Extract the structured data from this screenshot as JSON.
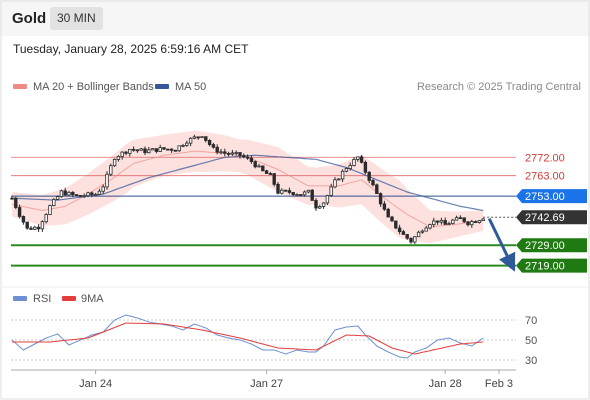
{
  "app": {
    "title": "Gold",
    "timeframe": "30 MIN"
  },
  "datetime": "Tuesday, January 28, 2025 6:59:16 AM CET",
  "credit": "Research © 2025 Trading Central",
  "colors": {
    "bollinger_band": "#f9c8c4",
    "ma20": "#f08a84",
    "ma50": "#36579a",
    "candle": "#2b2b2b",
    "candle_up": "#ffffff",
    "resistance_line": "#e06868",
    "pivot_line": "#2f4f8f",
    "support_line": "#2a8a1f",
    "pivot_label": "#1a73e8",
    "support_label": "#1f7a12",
    "current_label": "#333333",
    "arrow": "#2e5a9a",
    "rsi_line": "#6e8fd0",
    "rsi_ma_line": "#e33d3d"
  },
  "chart_data": [
    {
      "type": "candlestick",
      "title": "Gold",
      "legend": [
        {
          "name": "MA 20 + Bollinger Bands",
          "color": "#f08a84"
        },
        {
          "name": "MA 50",
          "color": "#36579a"
        }
      ],
      "x_ticks": [
        {
          "label": "Jan 24",
          "bar": 22
        },
        {
          "label": "Jan 27",
          "bar": 67
        },
        {
          "label": "Jan 28",
          "bar": 114
        },
        {
          "label": "Feb 3",
          "bar": 133
        }
      ],
      "ylim": [
        2712,
        2800
      ],
      "levels": [
        {
          "label": "2772.00",
          "value": 2772.0,
          "kind": "resistance"
        },
        {
          "label": "2763.00",
          "value": 2763.0,
          "kind": "resistance"
        },
        {
          "label": "2753.00",
          "value": 2753.0,
          "kind": "pivot"
        },
        {
          "label": "2742.69",
          "value": 2742.69,
          "kind": "current"
        },
        {
          "label": "2729.00",
          "value": 2729.0,
          "kind": "support"
        },
        {
          "label": "2719.00",
          "value": 2719.0,
          "kind": "support"
        }
      ],
      "close_anchors": [
        [
          0,
          2752
        ],
        [
          2,
          2744
        ],
        [
          4,
          2737
        ],
        [
          7,
          2738
        ],
        [
          10,
          2748
        ],
        [
          13,
          2755
        ],
        [
          17,
          2753
        ],
        [
          22,
          2754
        ],
        [
          24,
          2758
        ],
        [
          27,
          2772
        ],
        [
          31,
          2776
        ],
        [
          35,
          2775
        ],
        [
          39,
          2776
        ],
        [
          43,
          2776
        ],
        [
          46,
          2780
        ],
        [
          50,
          2783
        ],
        [
          53,
          2776
        ],
        [
          56,
          2774
        ],
        [
          60,
          2773
        ],
        [
          63,
          2770
        ],
        [
          66,
          2765
        ],
        [
          68,
          2763
        ],
        [
          70,
          2755
        ],
        [
          73,
          2755
        ],
        [
          76,
          2754
        ],
        [
          78,
          2755
        ],
        [
          80,
          2748
        ],
        [
          82,
          2750
        ],
        [
          85,
          2760
        ],
        [
          88,
          2767
        ],
        [
          91,
          2772
        ],
        [
          93,
          2765
        ],
        [
          95,
          2758
        ],
        [
          97,
          2750
        ],
        [
          99,
          2742
        ],
        [
          101,
          2738
        ],
        [
          103,
          2734
        ],
        [
          105,
          2731
        ],
        [
          106,
          2733
        ],
        [
          108,
          2737
        ],
        [
          110,
          2740
        ],
        [
          112,
          2741
        ],
        [
          114,
          2739
        ],
        [
          116,
          2741
        ],
        [
          118,
          2742
        ],
        [
          120,
          2740
        ],
        [
          122,
          2741
        ],
        [
          124,
          2742.69
        ]
      ],
      "ma50_anchors": [
        [
          0,
          2752
        ],
        [
          12,
          2751
        ],
        [
          24,
          2754
        ],
        [
          36,
          2762
        ],
        [
          48,
          2768
        ],
        [
          56,
          2772
        ],
        [
          64,
          2773
        ],
        [
          72,
          2772
        ],
        [
          80,
          2771
        ],
        [
          88,
          2767
        ],
        [
          96,
          2761
        ],
        [
          104,
          2755
        ],
        [
          112,
          2751
        ],
        [
          118,
          2748
        ],
        [
          124,
          2746
        ]
      ],
      "ma20_anchors": [
        [
          0,
          2749
        ],
        [
          8,
          2746
        ],
        [
          14,
          2748
        ],
        [
          20,
          2754
        ],
        [
          26,
          2761
        ],
        [
          32,
          2769
        ],
        [
          40,
          2773
        ],
        [
          48,
          2775
        ],
        [
          56,
          2774
        ],
        [
          62,
          2772
        ],
        [
          70,
          2766
        ],
        [
          78,
          2758
        ],
        [
          86,
          2758
        ],
        [
          92,
          2761
        ],
        [
          98,
          2752
        ],
        [
          104,
          2744
        ],
        [
          110,
          2738
        ],
        [
          116,
          2739
        ],
        [
          124,
          2741
        ]
      ],
      "band_halfwidth_anchors": [
        [
          0,
          6
        ],
        [
          10,
          8
        ],
        [
          20,
          10
        ],
        [
          30,
          12
        ],
        [
          40,
          10
        ],
        [
          50,
          10
        ],
        [
          60,
          8
        ],
        [
          70,
          11
        ],
        [
          80,
          9
        ],
        [
          88,
          11
        ],
        [
          96,
          13
        ],
        [
          102,
          14
        ],
        [
          110,
          8
        ],
        [
          118,
          6
        ],
        [
          124,
          5
        ]
      ],
      "forecast_arrow": {
        "from": 2742.0,
        "to": 2719.0
      }
    },
    {
      "type": "line",
      "legend": [
        {
          "name": "RSI",
          "color": "#6e8fd0"
        },
        {
          "name": "9MA",
          "color": "#e33d3d"
        }
      ],
      "y_ticks": [
        70,
        50,
        30
      ],
      "ylim": [
        20,
        80
      ],
      "rsi_anchors": [
        [
          0,
          50
        ],
        [
          3,
          40
        ],
        [
          6,
          46
        ],
        [
          9,
          52
        ],
        [
          12,
          56
        ],
        [
          15,
          45
        ],
        [
          18,
          50
        ],
        [
          21,
          55
        ],
        [
          24,
          58
        ],
        [
          27,
          70
        ],
        [
          30,
          75
        ],
        [
          33,
          72
        ],
        [
          36,
          68
        ],
        [
          39,
          66
        ],
        [
          42,
          64
        ],
        [
          45,
          60
        ],
        [
          48,
          66
        ],
        [
          51,
          62
        ],
        [
          54,
          55
        ],
        [
          57,
          52
        ],
        [
          60,
          50
        ],
        [
          63,
          46
        ],
        [
          66,
          40
        ],
        [
          69,
          40
        ],
        [
          72,
          36
        ],
        [
          75,
          40
        ],
        [
          78,
          38
        ],
        [
          80,
          38
        ],
        [
          82,
          44
        ],
        [
          85,
          60
        ],
        [
          88,
          63
        ],
        [
          91,
          64
        ],
        [
          93,
          55
        ],
        [
          96,
          44
        ],
        [
          99,
          38
        ],
        [
          102,
          33
        ],
        [
          104,
          32
        ],
        [
          106,
          38
        ],
        [
          109,
          42
        ],
        [
          112,
          50
        ],
        [
          115,
          52
        ],
        [
          118,
          47
        ],
        [
          121,
          44
        ],
        [
          124,
          52
        ]
      ],
      "ma9_anchors": [
        [
          0,
          48
        ],
        [
          10,
          48
        ],
        [
          20,
          52
        ],
        [
          30,
          67
        ],
        [
          40,
          66
        ],
        [
          50,
          60
        ],
        [
          60,
          52
        ],
        [
          70,
          42
        ],
        [
          80,
          40
        ],
        [
          88,
          55
        ],
        [
          94,
          54
        ],
        [
          100,
          42
        ],
        [
          106,
          36
        ],
        [
          112,
          41
        ],
        [
          118,
          46
        ],
        [
          124,
          48
        ]
      ]
    }
  ]
}
